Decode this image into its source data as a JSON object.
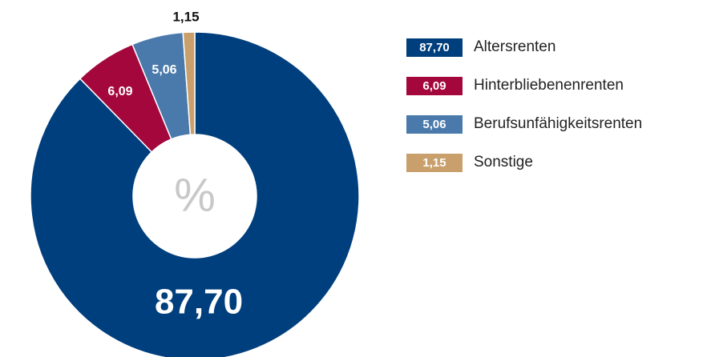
{
  "chart_data": {
    "type": "pie",
    "categories": [
      "Altersrenten",
      "Hinterbliebenenrenten",
      "Berufsunfähigkeitsrenten",
      "Sonstige"
    ],
    "values": [
      87.7,
      6.09,
      5.06,
      1.15
    ],
    "value_labels": [
      "87,70",
      "6,09",
      "5,06",
      "1,15"
    ],
    "colors": [
      "#003f7d",
      "#a3073c",
      "#4a7aab",
      "#c9a06c"
    ],
    "center_label": "%",
    "legend": "right"
  }
}
